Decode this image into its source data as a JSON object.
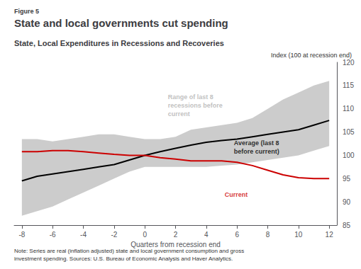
{
  "chart_data": {
    "type": "line",
    "figure_label": "Figure 5",
    "title": "State and local governments cut spending",
    "subtitle": "State, Local Expenditures in Recessions and Recoveries",
    "ylabel": "Index (100 at recession end)",
    "xlabel": "Quarters from recession end",
    "note": "Note: Series are real (inflation adjusted) state and local government consumption and gross\ninvestment spending. Sources: U.S. Bureau of Economic Analysis and Haver Analytics.",
    "xlim": [
      -8.5,
      12.5
    ],
    "xticks": [
      -8,
      -6,
      -4,
      -2,
      0,
      2,
      4,
      6,
      8,
      10,
      12
    ],
    "ylim": [
      85,
      120
    ],
    "yticks": [
      85,
      90,
      95,
      100,
      105,
      110,
      115,
      120
    ],
    "grid": false,
    "x": [
      -8,
      -7,
      -6,
      -5,
      -4,
      -3,
      -2,
      -1,
      0,
      1,
      2,
      3,
      4,
      5,
      6,
      7,
      8,
      9,
      10,
      11,
      12
    ],
    "series": [
      {
        "type": "band",
        "color": "#cccccc",
        "lower": [
          87.0,
          88.0,
          89.0,
          90.5,
          92.0,
          93.5,
          95.0,
          96.5,
          97.5,
          97.5,
          97.5,
          97.5,
          97.5,
          97.8,
          98.0,
          98.5,
          99.0,
          99.5,
          100.0,
          101.0,
          102.0
        ],
        "upper": [
          103.5,
          103.5,
          103.0,
          103.5,
          104.0,
          104.5,
          104.5,
          104.0,
          103.5,
          103.5,
          104.0,
          105.5,
          106.0,
          106.5,
          107.0,
          108.0,
          110.0,
          112.0,
          113.5,
          115.0,
          116.0
        ]
      },
      {
        "type": "line",
        "color": "#000000",
        "values": [
          94.5,
          95.5,
          96.0,
          96.5,
          97.0,
          97.5,
          98.0,
          99.0,
          100.0,
          100.8,
          101.5,
          102.2,
          102.8,
          103.2,
          103.5,
          104.0,
          104.5,
          105.0,
          105.5,
          106.5,
          107.5
        ]
      },
      {
        "type": "line",
        "color": "#cc0000",
        "values": [
          100.8,
          100.8,
          101.0,
          101.0,
          100.8,
          100.5,
          100.2,
          100.0,
          100.0,
          99.5,
          99.2,
          98.8,
          98.8,
          98.8,
          98.5,
          97.8,
          96.8,
          95.8,
          95.2,
          95.0,
          95.0
        ]
      }
    ],
    "annotations": [
      {
        "text": "Range of last 8\nrecessions before\ncurrent",
        "x": 1.5,
        "y": 113.5,
        "color": "#b0b0b0"
      },
      {
        "text": "Average (last 8\nbefore current)",
        "x": 5.8,
        "y": 103.5,
        "color": "#000000"
      },
      {
        "text": "Current",
        "x": 5.2,
        "y": 92.5,
        "color": "#cc0000"
      }
    ]
  }
}
